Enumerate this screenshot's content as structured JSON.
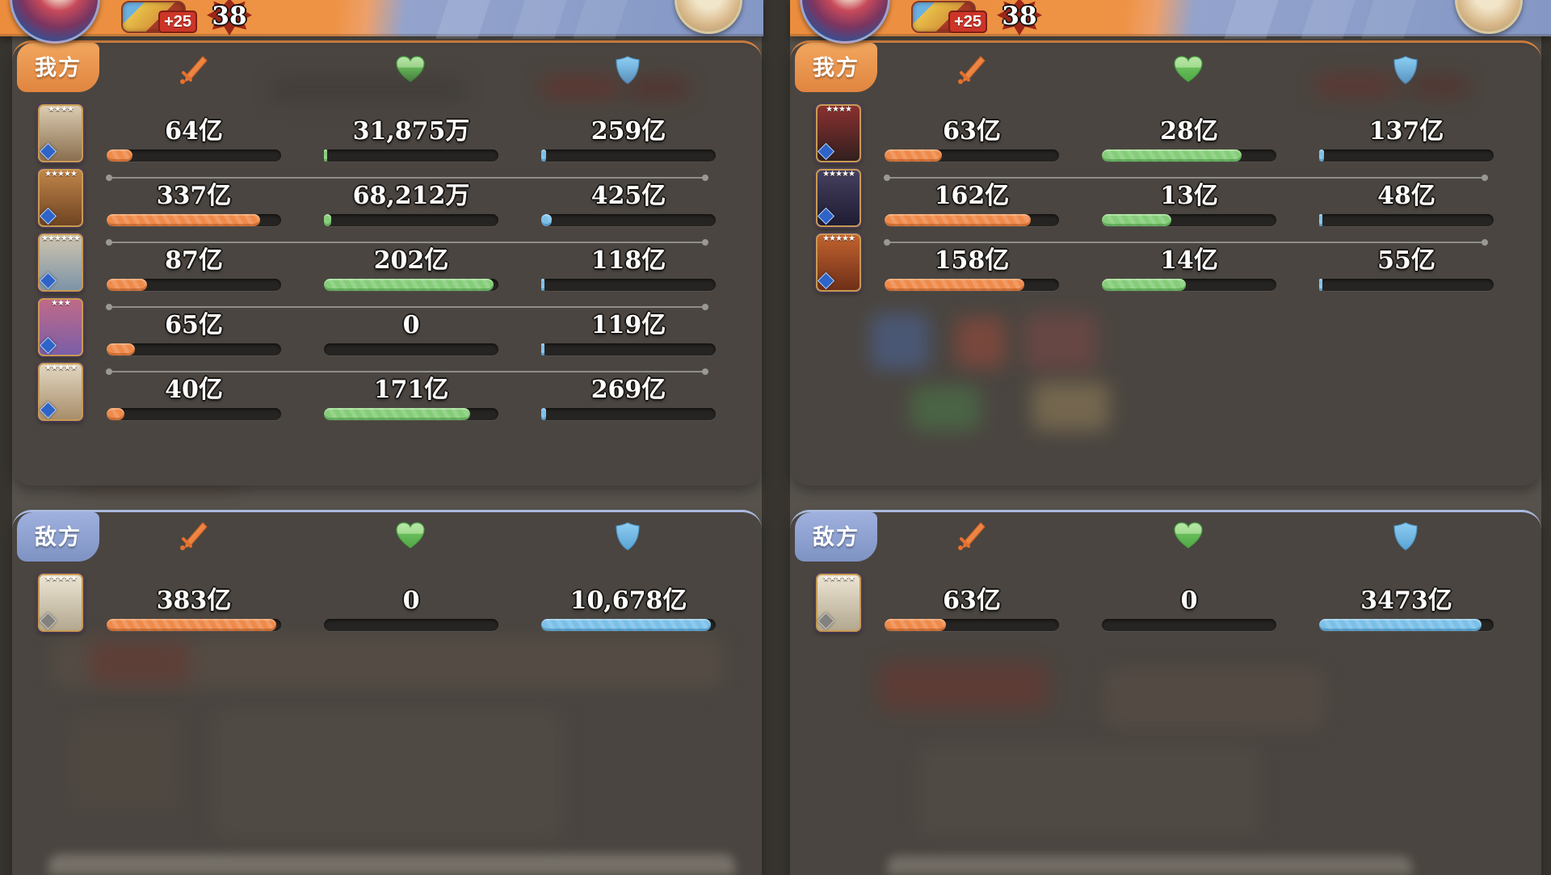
{
  "top_bar": {
    "buff_label": "+25",
    "counter": "38"
  },
  "columns": [
    {
      "ally": {
        "tab": "我方",
        "rows": [
          {
            "avatar": [
              "#dcccb2",
              "#8a6f4e"
            ],
            "stars": 4,
            "atk": "64亿",
            "atk_pct": 15,
            "heal": "31,875万",
            "heal_pct": 2,
            "def": "259亿",
            "def_pct": 3
          },
          {
            "avatar": [
              "#c08449",
              "#6e4422"
            ],
            "stars": 5,
            "atk": "337亿",
            "atk_pct": 88,
            "heal": "68,212万",
            "heal_pct": 4,
            "def": "425亿",
            "def_pct": 6
          },
          {
            "avatar": [
              "#cfc4ae",
              "#7d94a8"
            ],
            "stars": 6,
            "atk": "87亿",
            "atk_pct": 23,
            "heal": "202亿",
            "heal_pct": 97,
            "def": "118亿",
            "def_pct": 2
          },
          {
            "avatar": [
              "#c06a88",
              "#7a5ea8"
            ],
            "stars": 3,
            "atk": "65亿",
            "atk_pct": 16,
            "heal": "0",
            "heal_pct": 0,
            "def": "119亿",
            "def_pct": 2
          },
          {
            "avatar": [
              "#e3d7c2",
              "#a88d6a"
            ],
            "stars": 5,
            "atk": "40亿",
            "atk_pct": 10,
            "heal": "171亿",
            "heal_pct": 84,
            "def": "269亿",
            "def_pct": 3
          }
        ]
      },
      "enemy": {
        "tab": "敌方",
        "rows": [
          {
            "avatar": [
              "#ece5d4",
              "#b3a88f"
            ],
            "stars": 5,
            "atk": "383亿",
            "atk_pct": 97,
            "heal": "0",
            "heal_pct": 0,
            "def": "10,678亿",
            "def_pct": 97
          }
        ]
      }
    },
    {
      "ally": {
        "tab": "我方",
        "rows": [
          {
            "avatar": [
              "#8a3030",
              "#32201e"
            ],
            "stars": 4,
            "atk": "63亿",
            "atk_pct": 33,
            "heal": "28亿",
            "heal_pct": 80,
            "def": "137亿",
            "def_pct": 3
          },
          {
            "avatar": [
              "#44405e",
              "#201c34"
            ],
            "stars": 5,
            "atk": "162亿",
            "atk_pct": 84,
            "heal": "13亿",
            "heal_pct": 40,
            "def": "48亿",
            "def_pct": 2
          },
          {
            "avatar": [
              "#c2622e",
              "#6e2f18"
            ],
            "stars": 5,
            "atk": "158亿",
            "atk_pct": 80,
            "heal": "14亿",
            "heal_pct": 48,
            "def": "55亿",
            "def_pct": 2
          }
        ]
      },
      "enemy": {
        "tab": "敌方",
        "rows": [
          {
            "avatar": [
              "#ece5d4",
              "#b3a88f"
            ],
            "stars": 5,
            "atk": "63亿",
            "atk_pct": 35,
            "heal": "0",
            "heal_pct": 0,
            "def": "3473亿",
            "def_pct": 93
          }
        ]
      }
    }
  ],
  "icons": {
    "attack": "sword-icon",
    "heal": "heart-icon",
    "defense": "shield-icon"
  },
  "colors": {
    "attack": "#ef8a4a",
    "heal": "#85cd79",
    "defense": "#7bc0e8",
    "ally_tab": "#e9954f",
    "enemy_tab": "#8398c8",
    "panel": "#4a4540",
    "value_text": "#ffffff",
    "topbar_left": "#ec8d3e",
    "topbar_right": "#8497c5"
  }
}
